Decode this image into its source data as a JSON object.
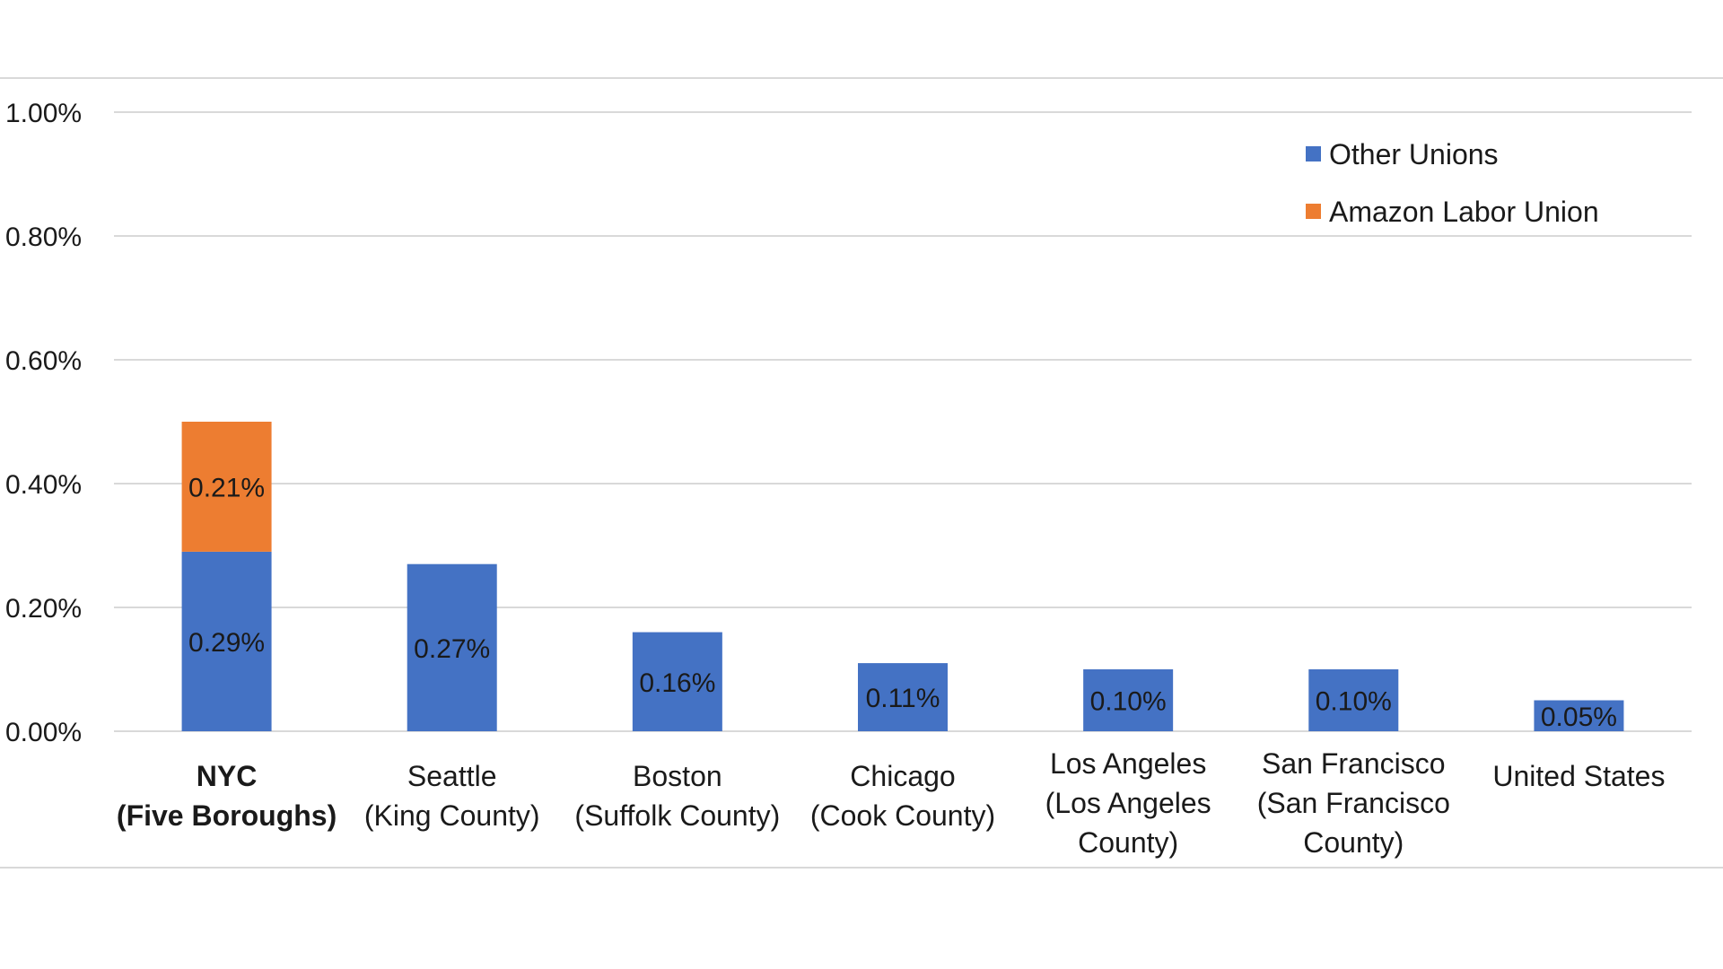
{
  "chart_data": {
    "type": "bar",
    "stacked": true,
    "categories": [
      [
        "NYC",
        "(Five Boroughs)"
      ],
      [
        "Seattle",
        "(King County)"
      ],
      [
        "Boston",
        "(Suffolk County)"
      ],
      [
        "Chicago",
        "(Cook County)"
      ],
      [
        "Los Angeles",
        "(Los Angeles",
        "County)"
      ],
      [
        "San Francisco",
        "(San Francisco",
        "County)"
      ],
      [
        "United States"
      ]
    ],
    "bold_category_index": 0,
    "series": [
      {
        "name": "Other Unions",
        "color": "#4472c4",
        "values": [
          0.29,
          0.27,
          0.16,
          0.11,
          0.1,
          0.1,
          0.05
        ],
        "labels": [
          "0.29%",
          "0.27%",
          "0.16%",
          "0.11%",
          "0.10%",
          "0.10%",
          "0.05%"
        ]
      },
      {
        "name": "Amazon Labor Union",
        "color": "#ed7d31",
        "values": [
          0.21,
          null,
          null,
          null,
          null,
          null,
          null
        ],
        "labels": [
          "0.21%",
          "",
          "",
          "",
          "",
          "",
          ""
        ]
      }
    ],
    "ylim": [
      0,
      1.0
    ],
    "yticks": [
      0,
      0.2,
      0.4,
      0.6,
      0.8,
      1.0
    ],
    "ytick_labels": [
      "0.00%",
      "0.20%",
      "0.40%",
      "0.60%",
      "0.80%",
      "1.00%"
    ],
    "grid": true,
    "gridline_color": "#d9d9d9",
    "legend_position": "top-right",
    "title": "",
    "xlabel": "",
    "ylabel": ""
  }
}
